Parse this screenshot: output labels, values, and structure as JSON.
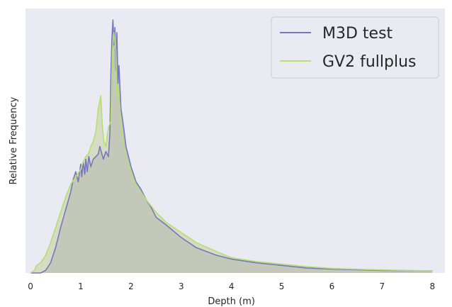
{
  "chart_data": {
    "type": "line",
    "title": "",
    "xlabel": "Depth (m)",
    "ylabel": "Relative Frequency",
    "xlim": [
      -0.1,
      8.25
    ],
    "ylim": [
      0,
      1.045
    ],
    "xticks": [
      0,
      1,
      2,
      3,
      4,
      5,
      6,
      7,
      8
    ],
    "yticks_visible": false,
    "grid": false,
    "background": "#eaeaf2",
    "filled_under_lines": true,
    "legend": {
      "placement": "top-right",
      "entries": [
        "M3D test",
        "GV2 fullplus"
      ]
    },
    "series": [
      {
        "name": "M3D test",
        "color": "#7777bb",
        "fill_color": "#9d9dc6",
        "x": [
          0,
          0.2,
          0.3,
          0.4,
          0.5,
          0.6,
          0.7,
          0.8,
          0.85,
          0.9,
          0.95,
          1.0,
          1.02,
          1.05,
          1.08,
          1.1,
          1.13,
          1.16,
          1.2,
          1.25,
          1.3,
          1.35,
          1.38,
          1.42,
          1.45,
          1.5,
          1.55,
          1.58,
          1.6,
          1.62,
          1.64,
          1.66,
          1.68,
          1.7,
          1.72,
          1.74,
          1.76,
          1.8,
          1.85,
          1.9,
          2.0,
          2.1,
          2.2,
          2.3,
          2.4,
          2.5,
          2.7,
          3.0,
          3.3,
          3.7,
          4.0,
          4.5,
          5.0,
          5.5,
          6.0,
          7.0,
          8.0
        ],
        "y": [
          0.0,
          0.0,
          0.01,
          0.04,
          0.1,
          0.18,
          0.25,
          0.32,
          0.37,
          0.4,
          0.36,
          0.43,
          0.38,
          0.44,
          0.39,
          0.45,
          0.4,
          0.46,
          0.42,
          0.45,
          0.46,
          0.47,
          0.5,
          0.47,
          0.45,
          0.48,
          0.46,
          0.55,
          0.78,
          0.92,
          1.0,
          0.9,
          0.97,
          0.8,
          0.95,
          0.75,
          0.82,
          0.65,
          0.58,
          0.5,
          0.42,
          0.36,
          0.33,
          0.29,
          0.26,
          0.22,
          0.19,
          0.14,
          0.1,
          0.07,
          0.055,
          0.04,
          0.03,
          0.02,
          0.015,
          0.01,
          0.008
        ]
      },
      {
        "name": "GV2 fullplus",
        "color": "#b4e070",
        "fill_color": "#c4cd9c",
        "x": [
          0,
          0.08,
          0.12,
          0.2,
          0.3,
          0.4,
          0.5,
          0.6,
          0.7,
          0.8,
          0.9,
          1.0,
          1.05,
          1.1,
          1.15,
          1.2,
          1.25,
          1.3,
          1.35,
          1.4,
          1.43,
          1.46,
          1.5,
          1.53,
          1.56,
          1.6,
          1.63,
          1.66,
          1.7,
          1.72,
          1.75,
          1.8,
          1.85,
          1.9,
          2.0,
          2.1,
          2.2,
          2.3,
          2.5,
          2.7,
          3.0,
          3.3,
          3.7,
          4.0,
          4.5,
          5.0,
          5.5,
          6.0,
          7.0,
          8.0
        ],
        "y": [
          0.0,
          0.01,
          0.03,
          0.04,
          0.07,
          0.12,
          0.18,
          0.24,
          0.3,
          0.35,
          0.38,
          0.41,
          0.44,
          0.46,
          0.47,
          0.5,
          0.52,
          0.56,
          0.65,
          0.7,
          0.58,
          0.52,
          0.5,
          0.55,
          0.58,
          0.6,
          0.88,
          0.95,
          0.88,
          0.7,
          0.74,
          0.6,
          0.52,
          0.46,
          0.4,
          0.35,
          0.32,
          0.29,
          0.24,
          0.2,
          0.16,
          0.12,
          0.085,
          0.06,
          0.045,
          0.035,
          0.025,
          0.018,
          0.012,
          0.008
        ]
      }
    ]
  }
}
